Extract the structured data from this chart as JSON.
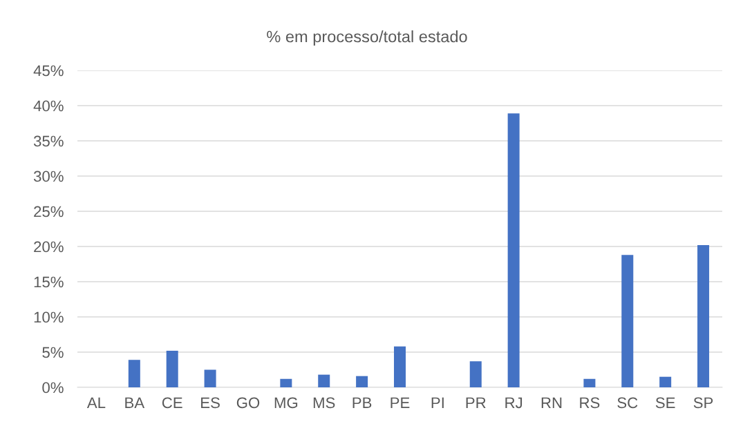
{
  "chart_data": {
    "type": "bar",
    "title": "% em processo/total estado",
    "categories": [
      "AL",
      "BA",
      "CE",
      "ES",
      "GO",
      "MG",
      "MS",
      "PB",
      "PE",
      "PI",
      "PR",
      "RJ",
      "RN",
      "RS",
      "SC",
      "SE",
      "SP"
    ],
    "values": [
      0,
      3.9,
      5.2,
      2.5,
      0,
      1.2,
      1.8,
      1.6,
      5.8,
      0,
      3.7,
      38.9,
      0,
      1.2,
      18.8,
      1.5,
      20.2
    ],
    "color": "#4472c4",
    "ylim": [
      0,
      45
    ],
    "yticks": [
      {
        "value": 0,
        "label": "0%"
      },
      {
        "value": 5,
        "label": "5%"
      },
      {
        "value": 10,
        "label": "10%"
      },
      {
        "value": 15,
        "label": "15%"
      },
      {
        "value": 20,
        "label": "20%"
      },
      {
        "value": 25,
        "label": "25%"
      },
      {
        "value": 30,
        "label": "30%"
      },
      {
        "value": 35,
        "label": "35%"
      },
      {
        "value": 40,
        "label": "40%"
      },
      {
        "value": 45,
        "label": "45%"
      }
    ],
    "grid": "y",
    "legend": false
  }
}
